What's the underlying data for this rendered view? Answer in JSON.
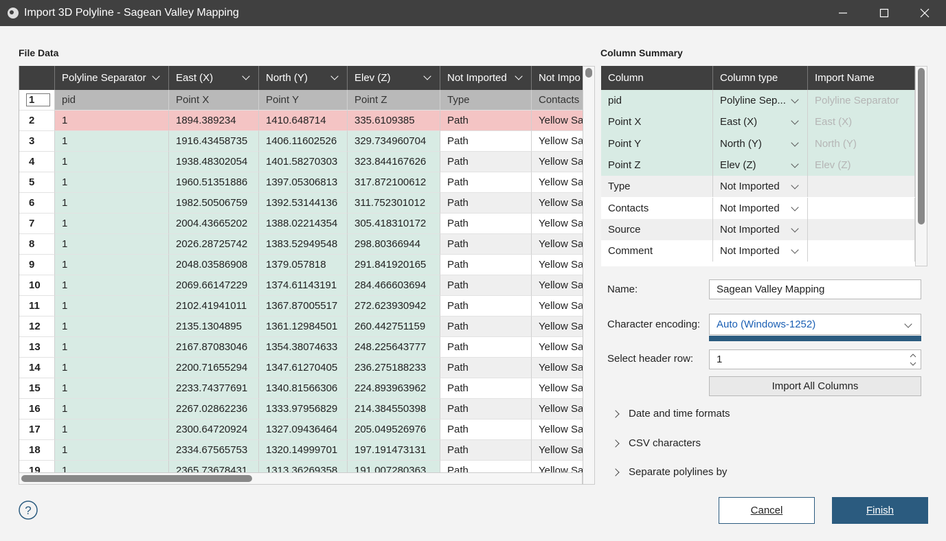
{
  "window_title": "Import 3D Polyline - Sagean Valley Mapping",
  "file_data": {
    "title": "File Data",
    "column_types": [
      "Polyline Separator",
      "East (X)",
      "North (Y)",
      "Elev (Z)",
      "Not Imported",
      "Not Impo"
    ],
    "header_row_number": "1",
    "header_names": [
      "pid",
      "Point X",
      "Point Y",
      "Point Z",
      "Type",
      "Contacts"
    ],
    "rows": [
      [
        "2",
        "1",
        "1894.389234",
        "1410.648714",
        "335.6109385",
        "Path",
        "Yellow Sa"
      ],
      [
        "3",
        "1",
        "1916.43458735",
        "1406.11602526",
        "329.734960704",
        "Path",
        "Yellow Sa"
      ],
      [
        "4",
        "1",
        "1938.48302054",
        "1401.58270303",
        "323.844167626",
        "Path",
        "Yellow Sa"
      ],
      [
        "5",
        "1",
        "1960.51351886",
        "1397.05306813",
        "317.872100612",
        "Path",
        "Yellow Sa"
      ],
      [
        "6",
        "1",
        "1982.50506759",
        "1392.53144136",
        "311.752301012",
        "Path",
        "Yellow Sa"
      ],
      [
        "7",
        "1",
        "2004.43665202",
        "1388.02214354",
        "305.418310172",
        "Path",
        "Yellow Sa"
      ],
      [
        "8",
        "1",
        "2026.28725742",
        "1383.52949548",
        "298.80366944",
        "Path",
        "Yellow Sa"
      ],
      [
        "9",
        "1",
        "2048.03586908",
        "1379.057818",
        "291.841920165",
        "Path",
        "Yellow Sa"
      ],
      [
        "10",
        "1",
        "2069.66147229",
        "1374.61143191",
        "284.466603694",
        "Path",
        "Yellow Sa"
      ],
      [
        "11",
        "1",
        "2102.41941011",
        "1367.87005517",
        "272.623930942",
        "Path",
        "Yellow Sa"
      ],
      [
        "12",
        "1",
        "2135.1304895",
        "1361.12984501",
        "260.442751159",
        "Path",
        "Yellow Sa"
      ],
      [
        "13",
        "1",
        "2167.87083046",
        "1354.38074633",
        "248.225643777",
        "Path",
        "Yellow Sa"
      ],
      [
        "14",
        "1",
        "2200.71655294",
        "1347.61270405",
        "236.275188233",
        "Path",
        "Yellow Sa"
      ],
      [
        "15",
        "1",
        "2233.74377691",
        "1340.81566306",
        "224.893963962",
        "Path",
        "Yellow Sa"
      ],
      [
        "16",
        "1",
        "2267.02862236",
        "1333.97956829",
        "214.384550398",
        "Path",
        "Yellow Sa"
      ],
      [
        "17",
        "1",
        "2300.64720924",
        "1327.09436464",
        "205.049526976",
        "Path",
        "Yellow Sa"
      ],
      [
        "18",
        "1",
        "2334.67565753",
        "1320.14999701",
        "197.191473131",
        "Path",
        "Yellow Sa"
      ],
      [
        "19",
        "1",
        "2365.73678431",
        "1313.36269358",
        "191.007280363",
        "Path",
        "Yellow Sa"
      ]
    ]
  },
  "column_summary": {
    "title": "Column Summary",
    "headers": [
      "Column",
      "Column type",
      "Import Name"
    ],
    "rows": [
      [
        "pid",
        "Polyline Sep...",
        "Polyline Separator"
      ],
      [
        "Point X",
        "East (X)",
        "East (X)"
      ],
      [
        "Point Y",
        "North (Y)",
        "North (Y)"
      ],
      [
        "Point Z",
        "Elev (Z)",
        "Elev (Z)"
      ],
      [
        "Type",
        "Not Imported"
      ],
      [
        "Contacts",
        "Not Imported"
      ],
      [
        "Source",
        "Not Imported"
      ],
      [
        "Comment",
        "Not Imported"
      ]
    ]
  },
  "form": {
    "name": {
      "label": "Name:",
      "value": "Sagean Valley Mapping"
    },
    "encoding": {
      "label": "Character encoding:",
      "value": "Auto (Windows-1252)"
    },
    "header_row": {
      "label": "Select header row:",
      "value": "1"
    },
    "import_all_button": "Import All Columns"
  },
  "expanders": [
    "Date and time formats",
    "CSV characters",
    "Separate polylines by"
  ],
  "help": "?",
  "buttons": {
    "cancel": "Cancel",
    "finish": "Finish"
  }
}
